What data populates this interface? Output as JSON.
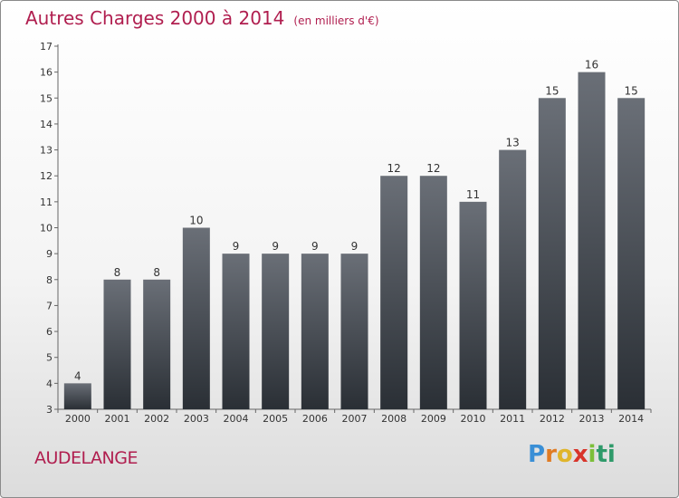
{
  "header": {
    "title": "Autres Charges 2000 à 2014",
    "subtitle": "(en milliers d'€)"
  },
  "footer": {
    "city": "AUDELANGE",
    "logo": "Proxiti"
  },
  "colors": {
    "title": "#b01e4f",
    "bar_top": "#6a6f77",
    "bar_bottom": "#2a2f35"
  },
  "chart_data": {
    "type": "bar",
    "categories": [
      "2000",
      "2001",
      "2002",
      "2003",
      "2004",
      "2005",
      "2006",
      "2007",
      "2008",
      "2009",
      "2010",
      "2011",
      "2012",
      "2013",
      "2014"
    ],
    "values": [
      4,
      8,
      8,
      10,
      9,
      9,
      9,
      9,
      12,
      12,
      11,
      13,
      15,
      16,
      15
    ],
    "data_labels": [
      "4",
      "8",
      "8",
      "10",
      "9",
      "9",
      "9",
      "9",
      "12",
      "12",
      "11",
      "13",
      "15",
      "16",
      "15"
    ],
    "ylim": [
      3,
      17
    ],
    "yticks": [
      3,
      4,
      5,
      6,
      7,
      8,
      9,
      10,
      11,
      12,
      13,
      14,
      15,
      16,
      17
    ],
    "grid": false,
    "legend": "none"
  }
}
